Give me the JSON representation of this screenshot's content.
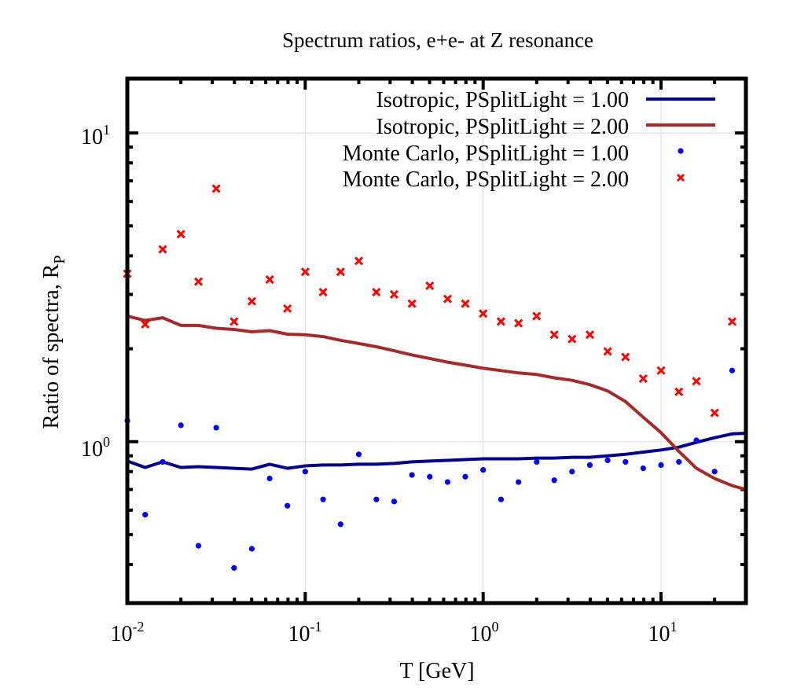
{
  "chart_data": {
    "type": "line",
    "title": "Spectrum ratios, e+e- at Z resonance",
    "xlabel": "T [GeV]",
    "ylabel_main": "Ratio of spectra, R",
    "ylabel_sub": "P",
    "xscale": "log",
    "yscale": "log",
    "xlim": [
      0.01,
      30
    ],
    "ylim": [
      0.3,
      15
    ],
    "x_ticks": [
      {
        "value": 0.01,
        "base": "10",
        "exp": "-2"
      },
      {
        "value": 0.1,
        "base": "10",
        "exp": "-1"
      },
      {
        "value": 1,
        "base": "10",
        "exp": "0"
      },
      {
        "value": 10,
        "base": "10",
        "exp": "1"
      }
    ],
    "y_ticks": [
      {
        "value": 1,
        "base": "10",
        "exp": "0"
      },
      {
        "value": 10,
        "base": "10",
        "exp": "1"
      }
    ],
    "grid": true,
    "legend_position": "top-right",
    "series": [
      {
        "name": "Isotropic, PSplitLight = 1.00",
        "kind": "line",
        "color": "#00008b",
        "x": [
          0.01,
          0.0126,
          0.0158,
          0.02,
          0.0251,
          0.0316,
          0.0398,
          0.0501,
          0.0631,
          0.0794,
          0.1,
          0.126,
          0.158,
          0.2,
          0.251,
          0.316,
          0.398,
          0.501,
          0.631,
          0.794,
          1.0,
          1.26,
          1.58,
          2.0,
          2.51,
          3.16,
          3.98,
          5.01,
          6.31,
          7.94,
          10.0,
          12.6,
          15.8,
          20.0,
          25.1,
          30.0
        ],
        "y": [
          0.865,
          0.825,
          0.86,
          0.825,
          0.83,
          0.825,
          0.82,
          0.815,
          0.845,
          0.82,
          0.835,
          0.84,
          0.84,
          0.845,
          0.845,
          0.85,
          0.86,
          0.865,
          0.87,
          0.875,
          0.88,
          0.88,
          0.88,
          0.885,
          0.885,
          0.89,
          0.89,
          0.9,
          0.91,
          0.925,
          0.94,
          0.96,
          0.995,
          1.03,
          1.06,
          1.065
        ]
      },
      {
        "name": "Isotropic, PSplitLight = 2.00",
        "kind": "line",
        "color": "#a52a2a",
        "x": [
          0.01,
          0.0126,
          0.0158,
          0.02,
          0.0251,
          0.0316,
          0.0398,
          0.0501,
          0.0631,
          0.0794,
          0.1,
          0.126,
          0.158,
          0.2,
          0.251,
          0.316,
          0.398,
          0.501,
          0.631,
          0.794,
          1.0,
          1.26,
          1.58,
          2.0,
          2.51,
          3.16,
          3.98,
          5.01,
          6.31,
          7.94,
          10.0,
          12.6,
          15.8,
          20.0,
          25.1,
          30.0
        ],
        "y": [
          2.55,
          2.47,
          2.52,
          2.38,
          2.38,
          2.33,
          2.31,
          2.27,
          2.29,
          2.23,
          2.22,
          2.19,
          2.13,
          2.08,
          2.03,
          1.97,
          1.91,
          1.86,
          1.81,
          1.77,
          1.73,
          1.7,
          1.67,
          1.65,
          1.61,
          1.58,
          1.53,
          1.46,
          1.35,
          1.2,
          1.07,
          0.93,
          0.82,
          0.76,
          0.72,
          0.7
        ]
      },
      {
        "name": "Monte Carlo, PSplitLight = 1.00",
        "kind": "points",
        "marker": "dot",
        "color": "#0000ff",
        "x": [
          0.01,
          0.0126,
          0.0158,
          0.02,
          0.0251,
          0.0316,
          0.0398,
          0.0501,
          0.0631,
          0.0794,
          0.1,
          0.126,
          0.158,
          0.2,
          0.251,
          0.316,
          0.398,
          0.501,
          0.631,
          0.794,
          1.0,
          1.26,
          1.58,
          2.0,
          2.51,
          3.16,
          3.98,
          5.01,
          6.31,
          7.94,
          10.0,
          12.6,
          15.8,
          20.0,
          25.1
        ],
        "y": [
          1.17,
          0.58,
          0.86,
          1.13,
          0.46,
          1.11,
          0.39,
          0.45,
          0.76,
          0.62,
          0.8,
          0.65,
          0.54,
          0.91,
          0.65,
          0.64,
          0.78,
          0.77,
          0.74,
          0.77,
          0.81,
          0.65,
          0.74,
          0.86,
          0.75,
          0.8,
          0.84,
          0.87,
          0.86,
          0.82,
          0.84,
          0.86,
          1.01,
          0.8,
          1.7
        ]
      },
      {
        "name": "Monte Carlo, PSplitLight = 2.00",
        "kind": "points",
        "marker": "x",
        "color": "#ff0000",
        "x": [
          0.01,
          0.0126,
          0.0158,
          0.02,
          0.0251,
          0.0316,
          0.0398,
          0.0501,
          0.0631,
          0.0794,
          0.1,
          0.126,
          0.158,
          0.2,
          0.251,
          0.316,
          0.398,
          0.501,
          0.631,
          0.794,
          1.0,
          1.26,
          1.58,
          2.0,
          2.51,
          3.16,
          3.98,
          5.01,
          6.31,
          7.94,
          10.0,
          12.6,
          15.8,
          20.0,
          25.1
        ],
        "y": [
          3.5,
          2.4,
          4.2,
          4.7,
          3.3,
          6.6,
          2.45,
          2.85,
          3.35,
          2.7,
          3.55,
          3.05,
          3.55,
          3.85,
          3.05,
          3.0,
          2.8,
          3.2,
          2.9,
          2.8,
          2.6,
          2.45,
          2.42,
          2.55,
          2.22,
          2.15,
          2.22,
          1.96,
          1.88,
          1.6,
          1.7,
          1.45,
          1.57,
          1.24,
          2.45
        ]
      }
    ]
  }
}
